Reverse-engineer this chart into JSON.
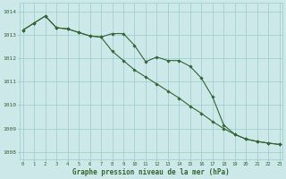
{
  "series1": [
    1013.2,
    1013.5,
    1013.8,
    1013.3,
    1013.25,
    1013.1,
    1012.95,
    1012.9,
    1013.05,
    1013.05,
    1012.55,
    1011.85,
    1012.05,
    1011.9,
    1011.9,
    1011.65,
    1011.15,
    1010.35,
    1009.15,
    1008.75,
    1008.55,
    1008.45,
    1008.38,
    1008.32
  ],
  "series2": [
    1013.2,
    1013.5,
    1013.8,
    1013.3,
    1013.25,
    1013.1,
    1012.95,
    1012.9,
    1012.3,
    1011.9,
    1011.5,
    1011.2,
    1010.9,
    1010.6,
    1010.3,
    1009.95,
    1009.65,
    1009.3,
    1009.0,
    1008.75,
    1008.55,
    1008.45,
    1008.38,
    1008.32
  ],
  "x": [
    0,
    1,
    2,
    3,
    4,
    5,
    6,
    7,
    8,
    9,
    10,
    11,
    12,
    13,
    14,
    15,
    16,
    17,
    18,
    19,
    20,
    21,
    22,
    23
  ],
  "xlabels": [
    "0",
    "1",
    "2",
    "3",
    "4",
    "5",
    "6",
    "7",
    "8",
    "9",
    "10",
    "11",
    "12",
    "13",
    "14",
    "15",
    "16",
    "17",
    "18",
    "19",
    "20",
    "21",
    "22",
    "23"
  ],
  "ylim": [
    1007.7,
    1014.35
  ],
  "yticks": [
    1008,
    1009,
    1010,
    1011,
    1012,
    1013,
    1014
  ],
  "line_color": "#336633",
  "bg_color": "#cce8e8",
  "grid_color": "#99cccc",
  "xlabel": "Graphe pression niveau de la mer (hPa)"
}
